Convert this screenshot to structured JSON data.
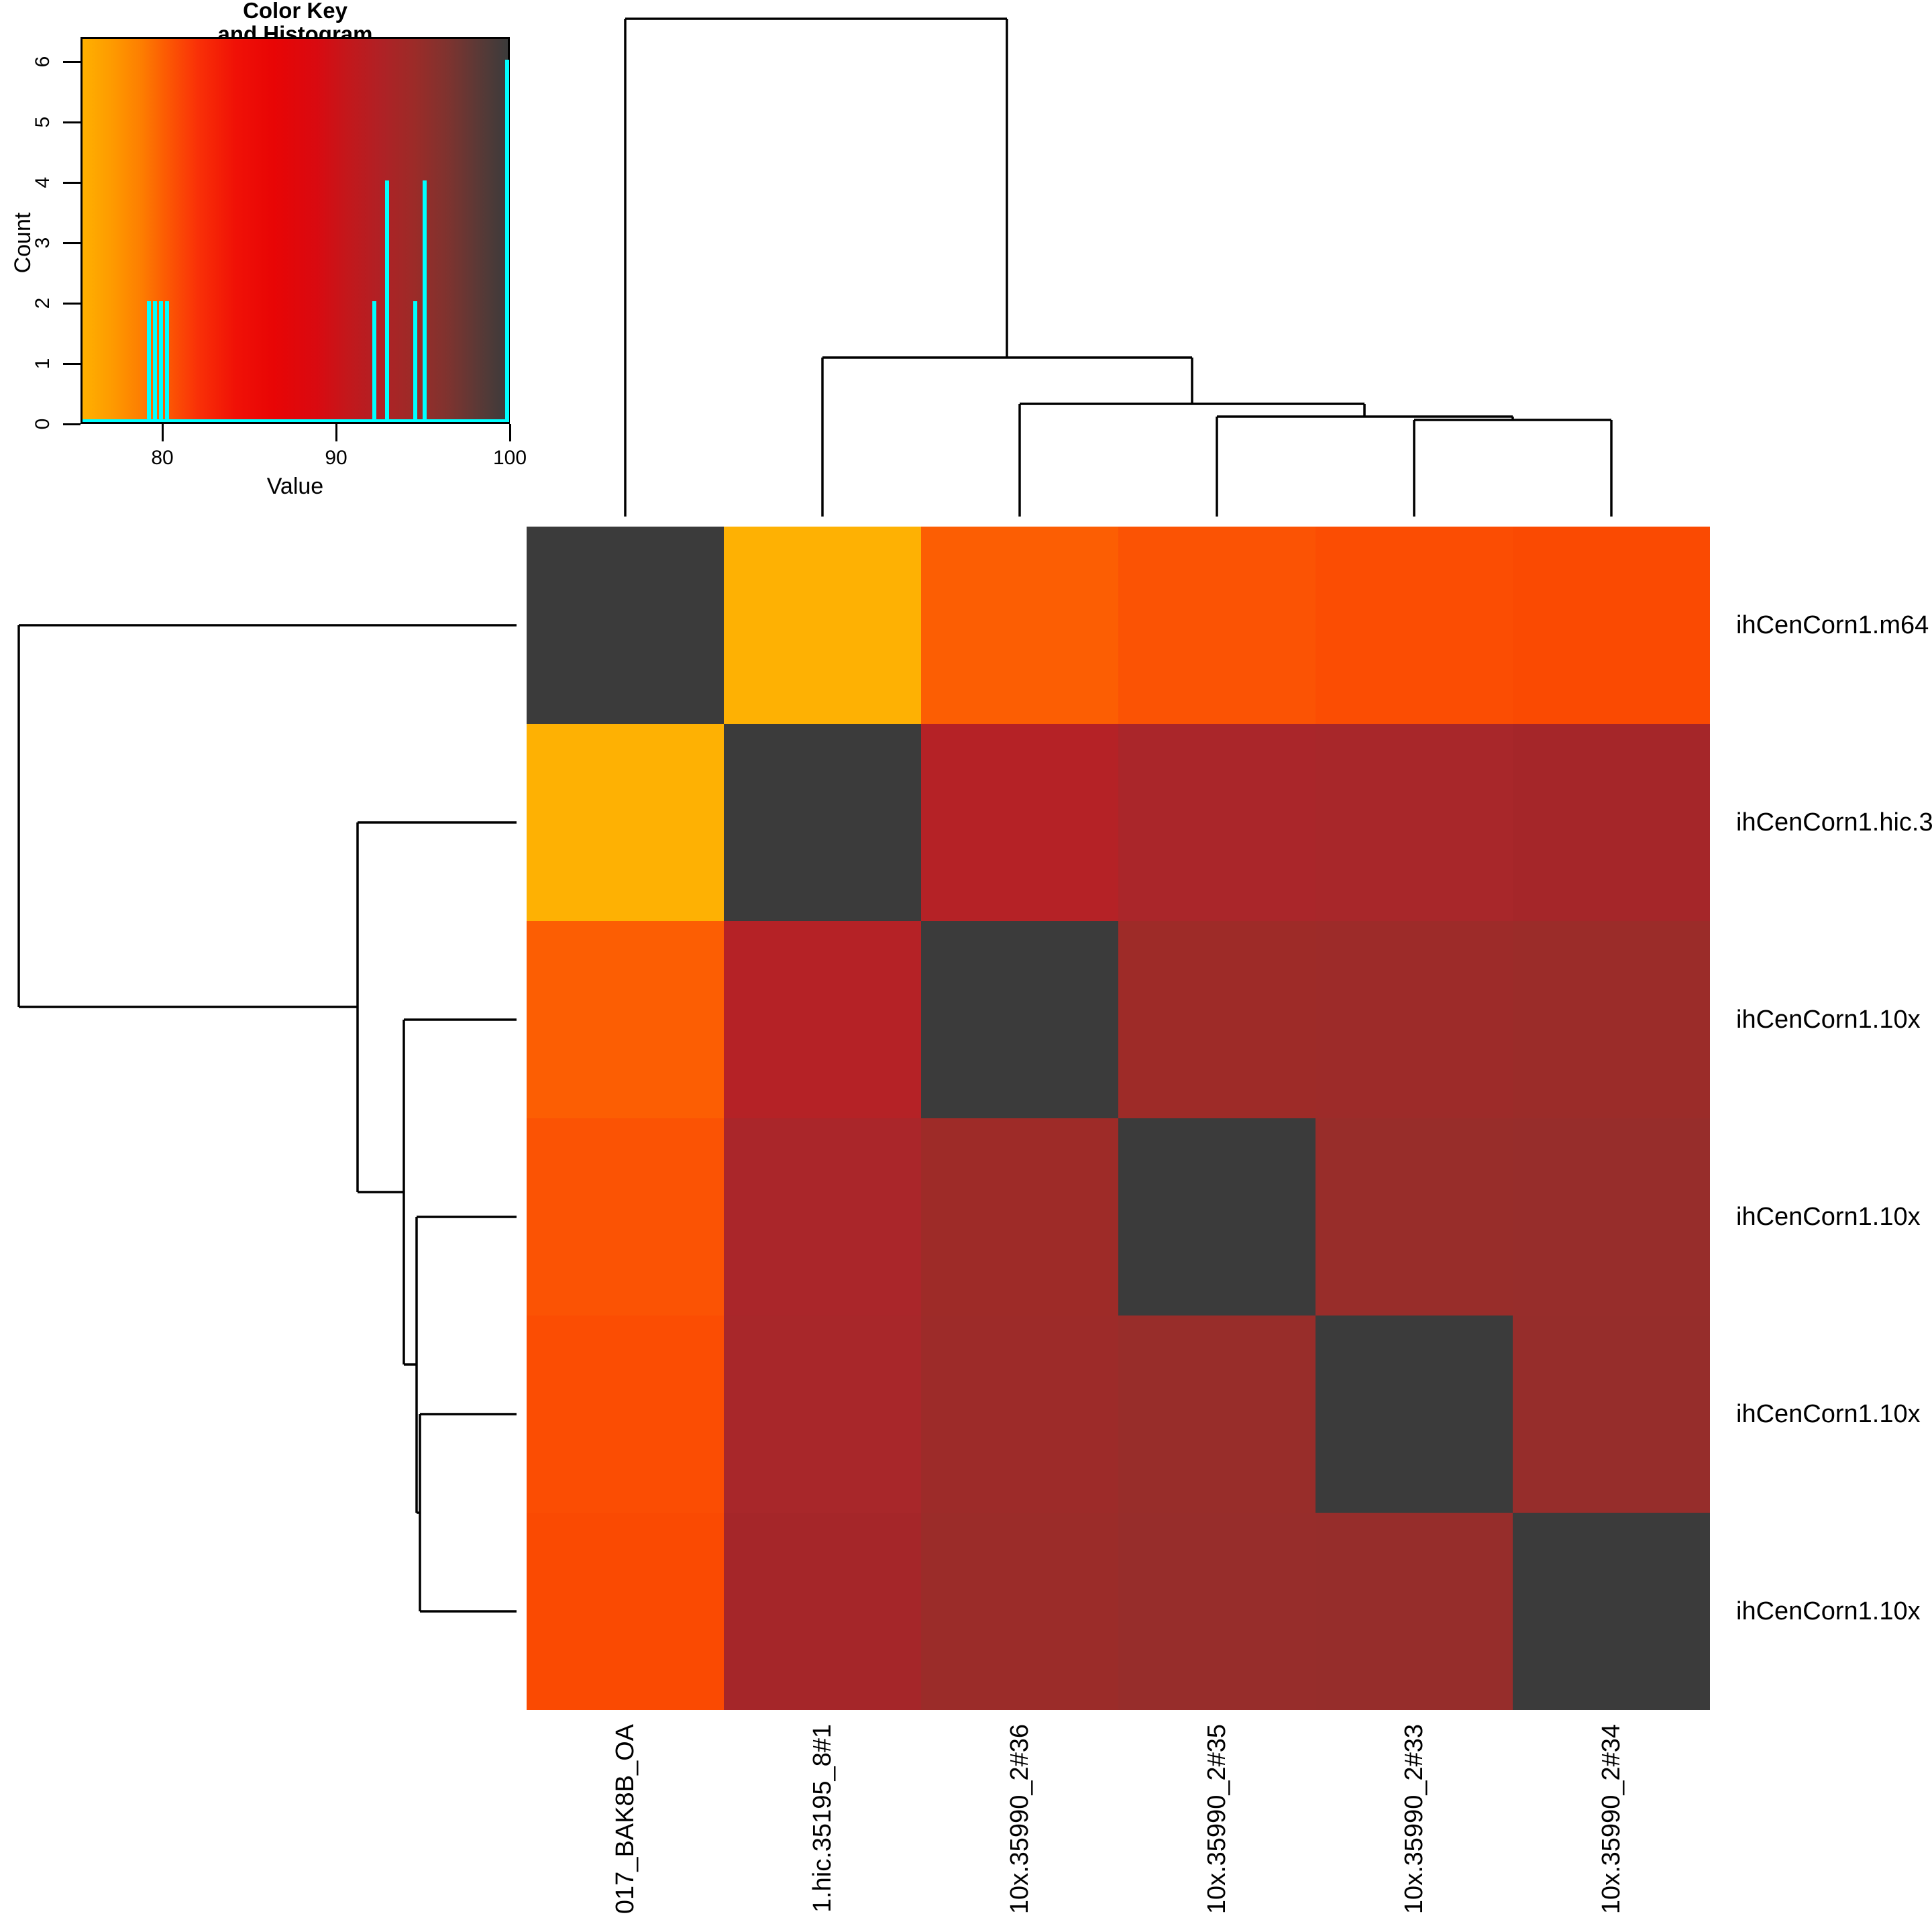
{
  "color_key": {
    "title_line1": "Color Key",
    "title_line2": "and Histogram",
    "xlabel": "Value",
    "ylabel": "Count",
    "x_ticks": [
      {
        "label": "80",
        "x": 242
      },
      {
        "label": "90",
        "x": 501
      },
      {
        "label": "100",
        "x": 760
      }
    ],
    "y_tick_labels": [
      "0",
      "1",
      "2",
      "3",
      "4",
      "5",
      "6"
    ],
    "histogram_color": "#00FFFF",
    "gradient_stops": [
      [
        0.0,
        "#FFB000"
      ],
      [
        0.07,
        "#FE9A00"
      ],
      [
        0.14,
        "#FD7D01"
      ],
      [
        0.19,
        "#FC5E03"
      ],
      [
        0.27,
        "#F93107"
      ],
      [
        0.36,
        "#F01106"
      ],
      [
        0.45,
        "#E80505"
      ],
      [
        0.55,
        "#D90A10"
      ],
      [
        0.62,
        "#C4171B"
      ],
      [
        0.7,
        "#B02125"
      ],
      [
        0.78,
        "#9C2B28"
      ],
      [
        0.86,
        "#7E332F"
      ],
      [
        0.93,
        "#5B3936"
      ],
      [
        1.0,
        "#3B3B3B"
      ]
    ],
    "bars": [
      {
        "x": 219,
        "count": 2,
        "value": 79.2
      },
      {
        "x": 228,
        "count": 2,
        "value": 79.6
      },
      {
        "x": 237,
        "count": 2,
        "value": 79.9
      },
      {
        "x": 246,
        "count": 2,
        "value": 80.3
      },
      {
        "x": 555,
        "count": 2,
        "value": 92.2
      },
      {
        "x": 574,
        "count": 4,
        "value": 92.9
      },
      {
        "x": 616,
        "count": 2,
        "value": 94.5
      },
      {
        "x": 630,
        "count": 4,
        "value": 95.1
      },
      {
        "x": 753,
        "count": 6,
        "value": 100
      }
    ]
  },
  "heatmap": {
    "row_labels": [
      "ihCenCorn1.m64",
      "ihCenCorn1.hic.3",
      "ihCenCorn1.10x",
      "ihCenCorn1.10x",
      "ihCenCorn1.10x",
      "ihCenCorn1.10x"
    ],
    "col_labels": [
      "017_BAK8B_OA",
      "1.hic.35195_8#1",
      "10x.35990_2#36",
      "10x.35990_2#35",
      "10x.35990_2#33",
      "10x.35990_2#34"
    ],
    "cell_colors": [
      [
        "#3B3B3B",
        "#FEB103",
        "#FC5E03",
        "#FB5304",
        "#FB4D03",
        "#FA4A02"
      ],
      [
        "#FEB103",
        "#3B3B3B",
        "#B52226",
        "#AA262A",
        "#A8272A",
        "#A52629"
      ],
      [
        "#FC5E03",
        "#B52226",
        "#3B3B3B",
        "#9E2B28",
        "#9D2B29",
        "#9B2C29"
      ],
      [
        "#FB5304",
        "#AA262A",
        "#9E2B28",
        "#3B3B3B",
        "#982D2A",
        "#972D2B"
      ],
      [
        "#FB4D03",
        "#A8272A",
        "#9D2B29",
        "#982D2A",
        "#3B3B3B",
        "#962D2B"
      ],
      [
        "#FA4A02",
        "#A52629",
        "#9B2C29",
        "#972D2B",
        "#962D2B",
        "#3B3B3B"
      ]
    ],
    "diagonal_color": "#3B3B3B"
  },
  "chart_data": {
    "type": "heatmap",
    "title": "Color Key and Histogram",
    "legend_position": "top-left",
    "rows": [
      "ihCenCorn1.m64",
      "ihCenCorn1.hic.3",
      "ihCenCorn1.10x",
      "ihCenCorn1.10x",
      "ihCenCorn1.10x",
      "ihCenCorn1.10x"
    ],
    "cols": [
      "017_BAK8B_OA",
      "1.hic.35195_8#1",
      "10x.35990_2#36",
      "10x.35990_2#35",
      "10x.35990_2#33",
      "10x.35990_2#34"
    ],
    "values": [
      [
        100.0,
        76.0,
        79.2,
        79.6,
        79.9,
        80.3
      ],
      [
        76.0,
        100.0,
        92.2,
        92.9,
        92.9,
        93.0
      ],
      [
        79.2,
        92.2,
        100.0,
        94.5,
        94.5,
        94.6
      ],
      [
        79.6,
        92.9,
        94.5,
        100.0,
        95.0,
        95.1
      ],
      [
        79.9,
        92.9,
        94.5,
        95.0,
        100.0,
        95.1
      ],
      [
        80.3,
        93.0,
        94.6,
        95.1,
        95.1,
        100.0
      ]
    ],
    "value_range": [
      75.3,
      100
    ],
    "key_xlabel": "Value",
    "key_ylabel": "Count",
    "key_x_ticks": [
      80,
      90,
      100
    ],
    "key_y_ticks": [
      0,
      1,
      2,
      3,
      4,
      5,
      6
    ],
    "histogram": {
      "values": [
        79.2,
        79.6,
        79.9,
        80.3,
        92.2,
        92.9,
        94.5,
        95.1,
        100
      ],
      "counts": [
        2,
        2,
        2,
        2,
        2,
        4,
        2,
        4,
        6
      ]
    },
    "col_dendrogram_segments": [
      [
        932,
        28,
        932,
        770
      ],
      [
        1226,
        533,
        1226,
        770
      ],
      [
        1520,
        602,
        1520,
        770
      ],
      [
        1814,
        621,
        1814,
        770
      ],
      [
        2108,
        626,
        2108,
        770
      ],
      [
        2402,
        626,
        2402,
        770
      ],
      [
        932,
        28,
        1501,
        28
      ],
      [
        1226,
        533,
        1777,
        533
      ],
      [
        1520,
        602,
        2034,
        602
      ],
      [
        1814,
        621,
        2255,
        621
      ],
      [
        2108,
        626,
        2402,
        626
      ],
      [
        1501,
        28,
        1501,
        533
      ],
      [
        1777,
        533,
        1777,
        602
      ],
      [
        2034,
        602,
        2034,
        621
      ],
      [
        2255,
        621,
        2255,
        626
      ]
    ],
    "row_dendrogram_segments": [
      [
        28,
        932,
        770,
        932
      ],
      [
        533,
        1226,
        770,
        1226
      ],
      [
        602,
        1520,
        770,
        1520
      ],
      [
        621,
        1814,
        770,
        1814
      ],
      [
        626,
        2108,
        770,
        2108
      ],
      [
        626,
        2402,
        770,
        2402
      ],
      [
        28,
        932,
        28,
        1501
      ],
      [
        533,
        1226,
        533,
        1777
      ],
      [
        602,
        1520,
        602,
        2034
      ],
      [
        621,
        1814,
        621,
        2255
      ],
      [
        626,
        2108,
        626,
        2402
      ],
      [
        28,
        1501,
        533,
        1501
      ],
      [
        533,
        1777,
        602,
        1777
      ],
      [
        602,
        2034,
        621,
        2034
      ],
      [
        621,
        2255,
        626,
        2255
      ]
    ]
  }
}
